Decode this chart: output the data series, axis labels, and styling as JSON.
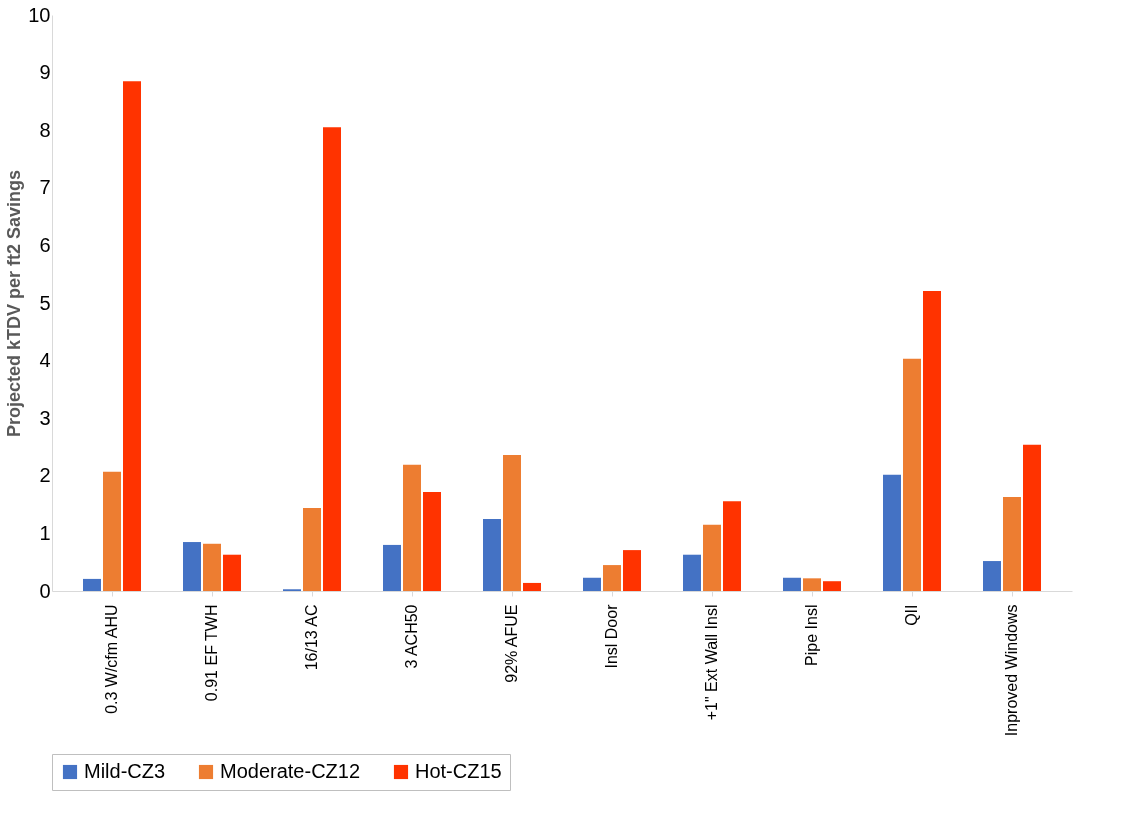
{
  "chart_data": {
    "type": "bar",
    "ylabel": "Projected kTDV per ft2 Savings",
    "categories": [
      "0.3 W/cfm AHU",
      "0.91 EF TWH",
      "16/13 AC",
      "3 ACH50",
      "92% AFUE",
      "Insl Door",
      "+1\" Ext Wall Insl",
      "Pipe Insl",
      "QII",
      "Inproved Windows"
    ],
    "series": [
      {
        "name": "Mild-CZ3",
        "color": "#4472c4",
        "values": [
          0.21,
          0.85,
          0.03,
          0.8,
          1.25,
          0.23,
          0.63,
          0.23,
          2.02,
          0.52
        ]
      },
      {
        "name": "Moderate-CZ12",
        "color": "#ed7d31",
        "values": [
          2.07,
          0.82,
          1.44,
          2.19,
          2.36,
          0.45,
          1.15,
          0.22,
          4.03,
          1.63
        ]
      },
      {
        "name": "Hot-CZ15",
        "color": "#ff3300",
        "values": [
          8.85,
          0.63,
          8.05,
          1.72,
          0.14,
          0.71,
          1.56,
          0.17,
          5.21,
          2.54
        ]
      }
    ],
    "ylim": [
      0,
      10
    ],
    "yticks": [
      0,
      1,
      2,
      3,
      4,
      5,
      6,
      7,
      8,
      9,
      10
    ],
    "grid": false,
    "legend": "bottom"
  }
}
